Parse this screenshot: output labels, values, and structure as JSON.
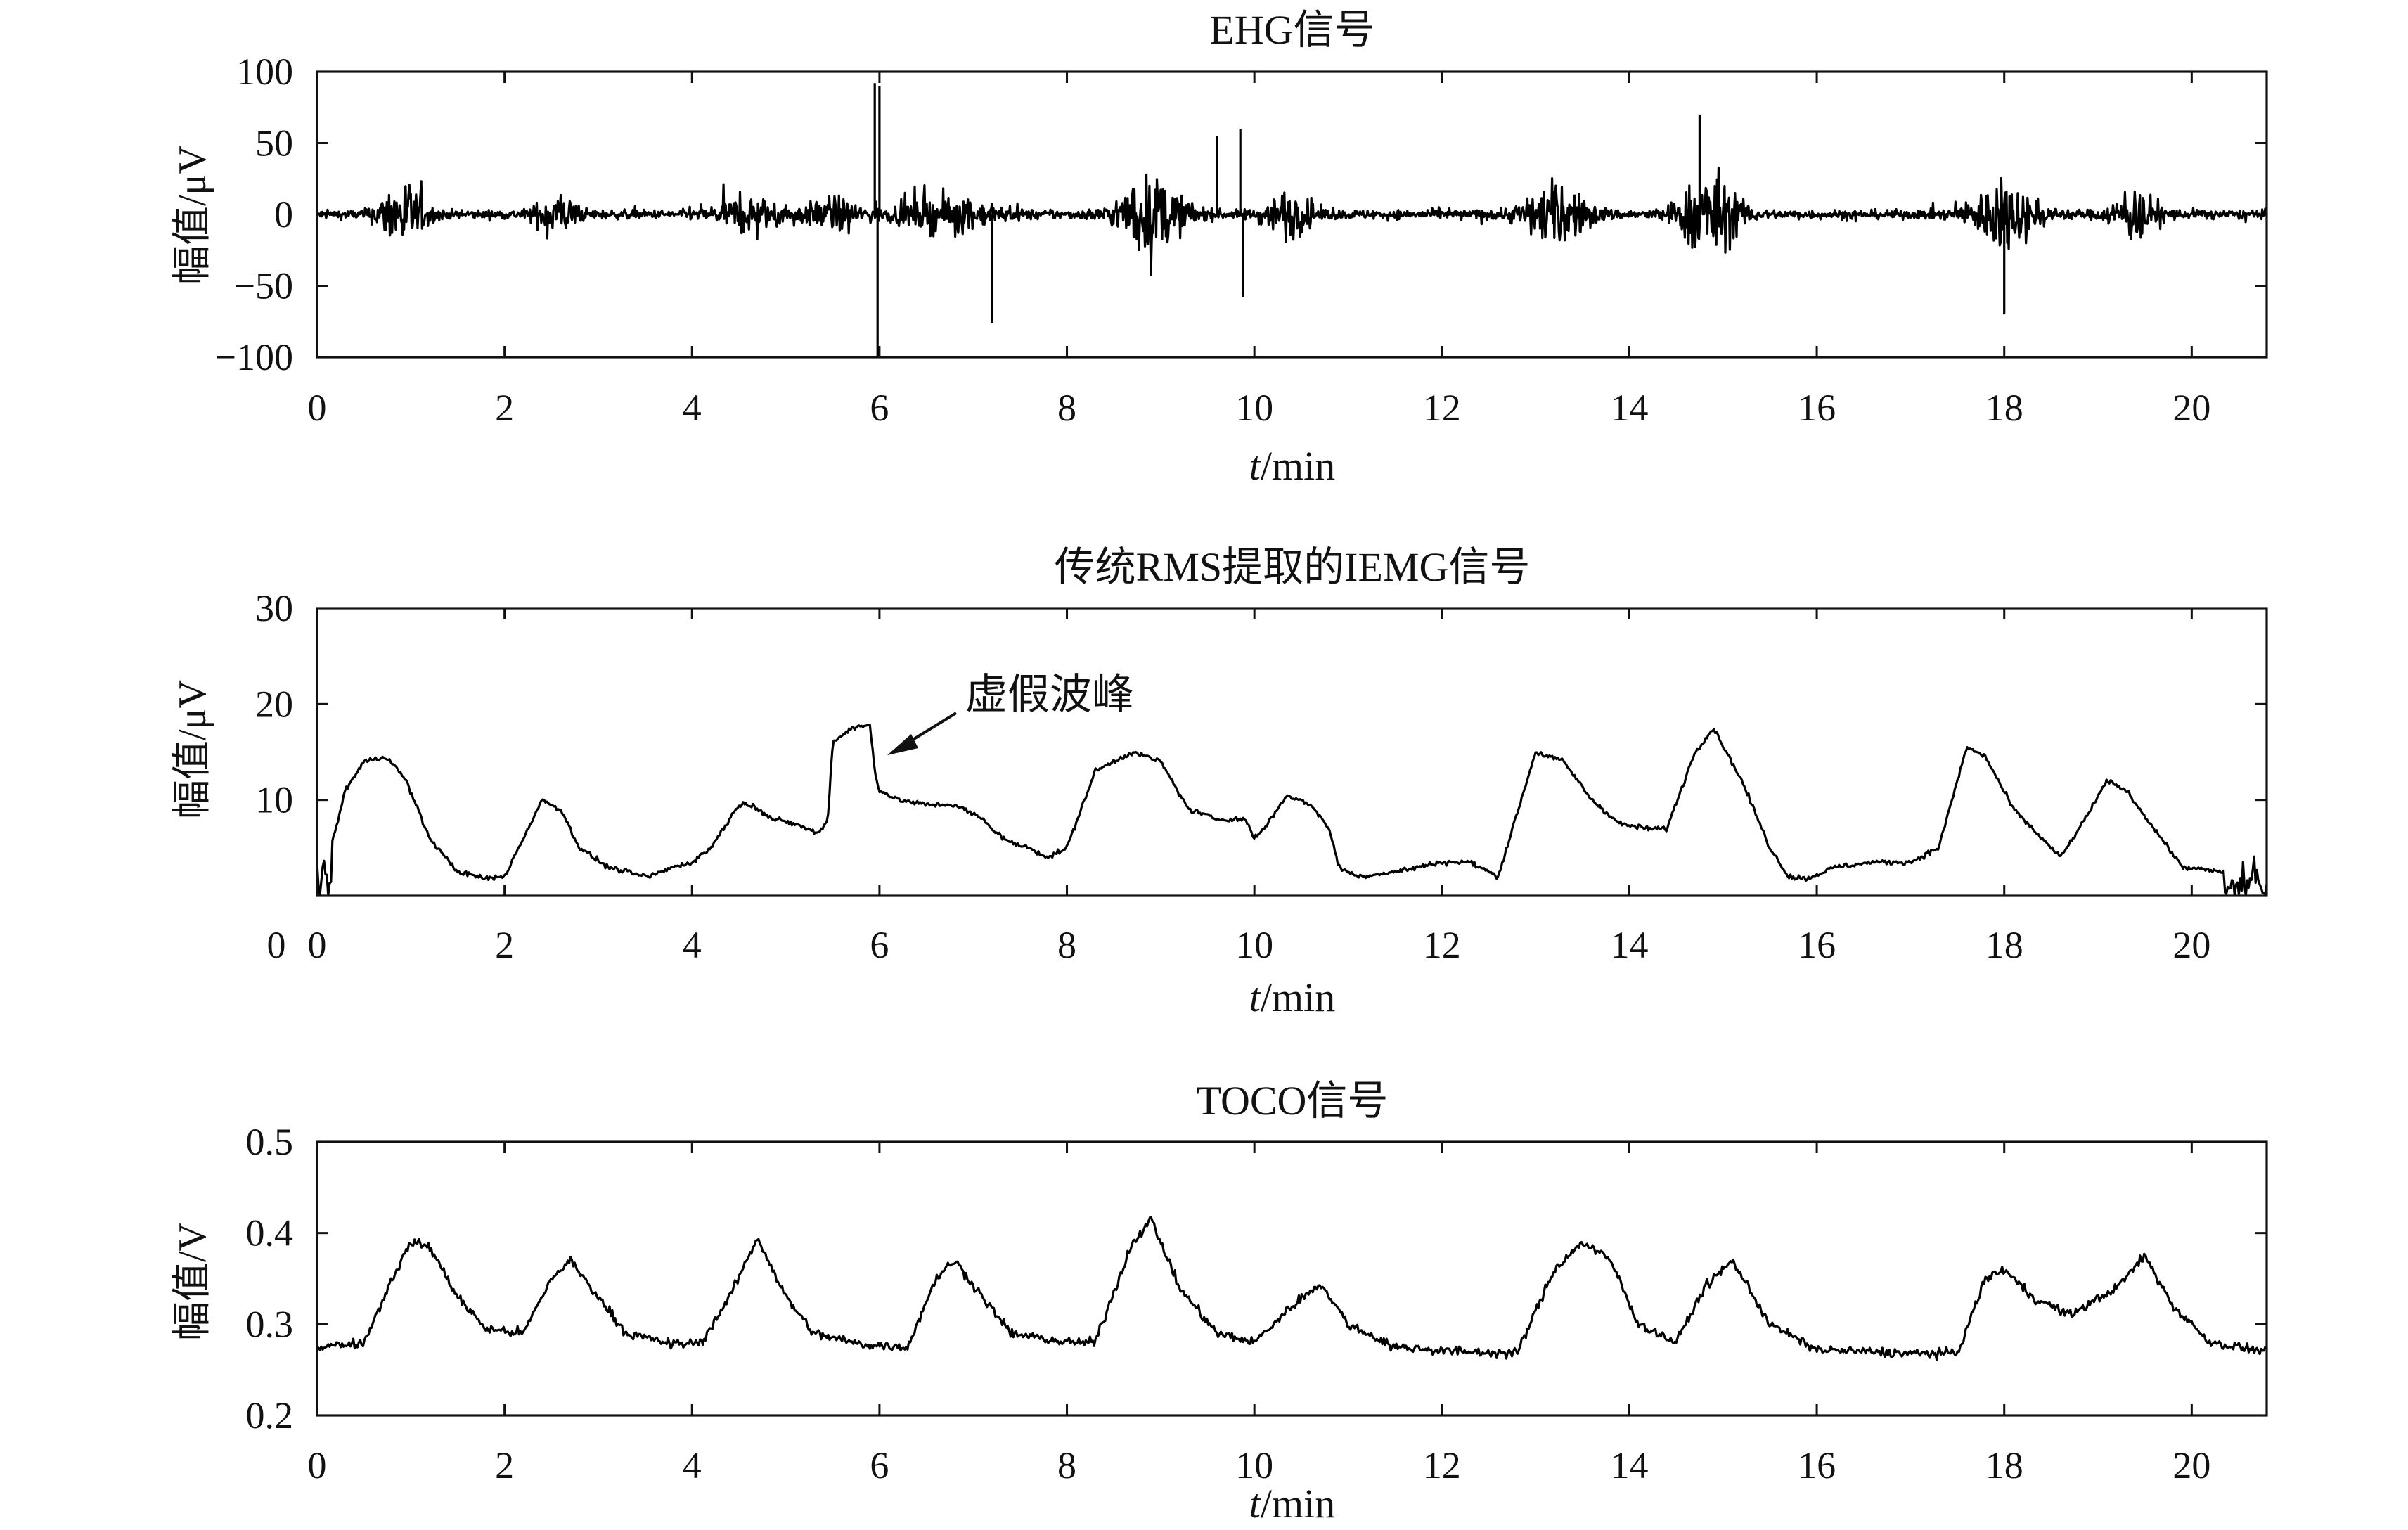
{
  "figure": {
    "background": "#ffffff",
    "line_color": "#000000"
  },
  "chart_data": [
    {
      "type": "line",
      "title": "EHG信号",
      "xlabel_italic": "t",
      "xlabel_rest": "/min",
      "ylabel": "幅值/μV",
      "xlim": [
        0,
        20.8
      ],
      "ylim": [
        -100,
        100
      ],
      "xticks": [
        0,
        2,
        4,
        6,
        8,
        10,
        12,
        14,
        16,
        18,
        20
      ],
      "xtick_labels": [
        "0",
        "2",
        "4",
        "6",
        "8",
        "10",
        "12",
        "14",
        "16",
        "18",
        "20"
      ],
      "yticks": [
        -100,
        -50,
        0,
        50,
        100
      ],
      "ytick_labels": [
        "−100",
        "−50",
        "0",
        "50",
        "100"
      ],
      "signal": "bursts",
      "baseline_noise": 3,
      "bursts": [
        {
          "center": 0.9,
          "width": 0.22,
          "amp": 42
        },
        {
          "center": 2.55,
          "width": 0.2,
          "amp": 25
        },
        {
          "center": 4.6,
          "width": 0.35,
          "amp": 18
        },
        {
          "center": 5.5,
          "width": 0.3,
          "amp": 16
        },
        {
          "center": 6.7,
          "width": 0.5,
          "amp": 18
        },
        {
          "center": 8.9,
          "width": 0.35,
          "amp": 42
        },
        {
          "center": 10.35,
          "width": 0.25,
          "amp": 25
        },
        {
          "center": 13.2,
          "width": 0.35,
          "amp": 34
        },
        {
          "center": 14.85,
          "width": 0.3,
          "amp": 52
        },
        {
          "center": 18.0,
          "width": 0.35,
          "amp": 38
        },
        {
          "center": 19.4,
          "width": 0.25,
          "amp": 26
        }
      ],
      "spikes": [
        [
          5.95,
          92
        ],
        [
          5.98,
          -100
        ],
        [
          6.0,
          90
        ],
        [
          7.2,
          -76
        ],
        [
          9.85,
          60
        ],
        [
          9.88,
          -58
        ],
        [
          14.75,
          70
        ],
        [
          18.0,
          -70
        ],
        [
          9.6,
          55
        ]
      ]
    },
    {
      "type": "line",
      "title": "传统RMS提取的IEMG信号",
      "xlabel_italic": "t",
      "xlabel_rest": "/min",
      "ylabel": "幅值/μV",
      "xlim": [
        0,
        20.8
      ],
      "ylim": [
        0,
        30
      ],
      "xticks": [
        0,
        2,
        4,
        6,
        8,
        10,
        12,
        14,
        16,
        18,
        20
      ],
      "xtick_labels": [
        "0",
        "2",
        "4",
        "6",
        "8",
        "10",
        "12",
        "14",
        "16",
        "18",
        "20"
      ],
      "yticks": [
        10,
        20,
        30
      ],
      "ytick_labels": [
        "10",
        "20",
        "30"
      ],
      "x0_label": "0",
      "signal": "curve",
      "noise": 0.25,
      "x": [
        0,
        0.15,
        0.3,
        0.5,
        0.75,
        0.95,
        1.2,
        1.5,
        1.8,
        2.0,
        2.2,
        2.4,
        2.6,
        2.8,
        3.1,
        3.5,
        3.6,
        3.8,
        4.0,
        4.2,
        4.4,
        4.5,
        4.65,
        4.85,
        5.1,
        5.35,
        5.45,
        5.5,
        5.7,
        5.9,
        5.95,
        6.0,
        6.2,
        6.5,
        6.8,
        7.1,
        7.2,
        7.4,
        7.6,
        7.8,
        8.0,
        8.3,
        8.7,
        9.0,
        9.3,
        9.6,
        9.9,
        10.0,
        10.1,
        10.35,
        10.6,
        10.8,
        10.9,
        11.1,
        11.5,
        12.0,
        12.3,
        12.6,
        13.0,
        13.3,
        13.6,
        13.9,
        14.2,
        14.4,
        14.7,
        14.9,
        15.2,
        15.5,
        15.7,
        15.9,
        16.2,
        16.6,
        17.0,
        17.3,
        17.6,
        17.8,
        18.1,
        18.4,
        18.6,
        18.8,
        19.1,
        19.3,
        19.6,
        19.9,
        20.3,
        20.5,
        20.8
      ],
      "y": [
        1,
        5,
        11,
        14,
        14.5,
        12,
        6,
        2.5,
        1.8,
        2,
        6,
        10,
        9,
        5,
        3,
        2,
        2.2,
        3,
        3.5,
        5,
        8,
        9.5,
        9.5,
        8,
        7.5,
        6.5,
        8,
        16,
        17.5,
        17.8,
        13,
        11,
        10,
        9.5,
        9.5,
        8,
        7,
        5.5,
        5,
        4,
        5,
        13,
        15,
        14,
        9,
        8,
        8,
        6,
        7,
        10.5,
        9.5,
        7,
        3,
        2,
        2.5,
        3.5,
        3.5,
        2,
        15,
        14,
        10,
        7.5,
        7,
        7,
        15,
        17.5,
        12,
        5,
        2,
        1.8,
        3,
        3.5,
        3.5,
        5,
        15.5,
        14.5,
        9,
        6,
        4,
        7,
        12,
        11,
        7,
        3,
        2.5,
        2.5,
        2
      ]
    },
    {
      "type": "line",
      "title": "TOCO信号",
      "xlabel_italic": "t",
      "xlabel_rest": "/min",
      "ylabel": "幅值/V",
      "xlim": [
        0,
        20.8
      ],
      "ylim": [
        0.2,
        0.5
      ],
      "xticks": [
        0,
        2,
        4,
        6,
        8,
        10,
        12,
        14,
        16,
        18,
        20
      ],
      "xtick_labels": [
        "0",
        "2",
        "4",
        "6",
        "8",
        "10",
        "12",
        "14",
        "16",
        "18",
        "20"
      ],
      "yticks": [
        0.2,
        0.3,
        0.4,
        0.5
      ],
      "ytick_labels": [
        "0.2",
        "0.3",
        "0.4",
        "0.5"
      ],
      "signal": "curve",
      "noise": 0.005,
      "x": [
        0,
        0.5,
        0.8,
        1.0,
        1.2,
        1.5,
        1.8,
        2.2,
        2.5,
        2.7,
        3.0,
        3.3,
        3.8,
        4.1,
        4.4,
        4.7,
        5.0,
        5.3,
        5.8,
        6.3,
        6.6,
        6.8,
        7.1,
        7.4,
        8.0,
        8.3,
        8.7,
        8.9,
        9.2,
        9.6,
        10.0,
        10.4,
        10.7,
        11.0,
        11.5,
        12.2,
        12.8,
        13.2,
        13.5,
        13.8,
        14.1,
        14.5,
        14.8,
        15.1,
        15.5,
        16.0,
        17.0,
        17.5,
        17.8,
        18.0,
        18.3,
        18.7,
        19.2,
        19.5,
        19.8,
        20.2,
        20.8
      ],
      "y": [
        0.275,
        0.28,
        0.35,
        0.39,
        0.385,
        0.33,
        0.295,
        0.29,
        0.35,
        0.37,
        0.33,
        0.29,
        0.278,
        0.28,
        0.33,
        0.395,
        0.33,
        0.29,
        0.278,
        0.275,
        0.35,
        0.37,
        0.33,
        0.29,
        0.28,
        0.28,
        0.39,
        0.415,
        0.34,
        0.29,
        0.28,
        0.32,
        0.345,
        0.3,
        0.275,
        0.27,
        0.268,
        0.36,
        0.39,
        0.37,
        0.3,
        0.28,
        0.34,
        0.37,
        0.3,
        0.272,
        0.268,
        0.268,
        0.35,
        0.36,
        0.33,
        0.31,
        0.34,
        0.375,
        0.32,
        0.28,
        0.27
      ]
    }
  ],
  "annotation": {
    "text": "虚假波峰"
  }
}
